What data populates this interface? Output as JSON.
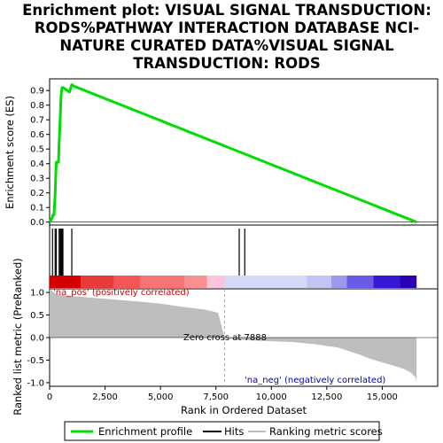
{
  "title": {
    "lines": [
      "Enrichment plot: VISUAL SIGNAL TRANSDUCTION:",
      "RODS%PATHWAY INTERACTION DATABASE NCI-",
      "NATURE CURATED DATA%VISUAL SIGNAL",
      "TRANSDUCTION: RODS"
    ]
  },
  "legend": {
    "enrichment_label": "Enrichment profile",
    "hits_label": "Hits",
    "metric_label": "Ranking metric scores"
  },
  "colors": {
    "enrichment": "#00dd00",
    "hits": "#000000",
    "metric_fill": "#bebebe",
    "pos_text": "#cc0000",
    "neg_text": "#0000bb",
    "zero_line": "#aaaaaa"
  },
  "annotations": {
    "pos": "'na_pos' (positively correlated)",
    "neg": "'na_neg' (negatively correlated)",
    "zero_cross": "Zero cross at 7888"
  },
  "chart_data": {
    "type": "line",
    "xlabel": "Rank in Ordered Dataset",
    "xlim": [
      0,
      17500
    ],
    "x_ticks": [
      0,
      2500,
      5000,
      7500,
      10000,
      12500,
      15000
    ],
    "x_tick_labels": [
      "0",
      "2,500",
      "5,000",
      "7,500",
      "10,000",
      "12,500",
      "15,000"
    ],
    "enrichment": {
      "ylabel": "Enrichment score (ES)",
      "ylim": [
        -0.02,
        0.98
      ],
      "y_ticks": [
        0.0,
        0.1,
        0.2,
        0.3,
        0.4,
        0.5,
        0.6,
        0.7,
        0.8,
        0.9
      ],
      "y_tick_labels": [
        "0.0",
        "0.1",
        "0.2",
        "0.3",
        "0.4",
        "0.5",
        "0.6",
        "0.7",
        "0.8",
        "0.9"
      ],
      "x": [
        0,
        120,
        150,
        200,
        250,
        280,
        300,
        320,
        350,
        400,
        430,
        460,
        480,
        500,
        520,
        560,
        620,
        700,
        800,
        900,
        1000,
        1100,
        16550
      ],
      "y": [
        0.0,
        0.03,
        0.05,
        0.05,
        0.2,
        0.33,
        0.41,
        0.41,
        0.41,
        0.41,
        0.55,
        0.64,
        0.72,
        0.8,
        0.87,
        0.92,
        0.92,
        0.91,
        0.9,
        0.89,
        0.94,
        0.93,
        0.0
      ]
    },
    "hits": {
      "positions": [
        130,
        250,
        300,
        430,
        480,
        520,
        560,
        600,
        1000,
        8550,
        8800
      ]
    },
    "ranked_metric": {
      "ylabel": "Ranked list metric (PreRanked)",
      "ylim": [
        -1.08,
        1.08
      ],
      "y_ticks": [
        -1.0,
        -0.5,
        0.0,
        0.5,
        1.0
      ],
      "y_tick_labels": [
        "-1.0",
        "-0.5",
        "0.0",
        "0.5",
        "1.0"
      ],
      "x": [
        0,
        300,
        1000,
        2000,
        3000,
        4000,
        5000,
        6000,
        7000,
        7600,
        7888,
        8500,
        10000,
        11000,
        12000,
        13000,
        14000,
        14500,
        15000,
        15500,
        16000,
        16300,
        16500,
        16550
      ],
      "y": [
        1.08,
        0.96,
        0.92,
        0.88,
        0.84,
        0.8,
        0.75,
        0.68,
        0.62,
        0.55,
        0.0,
        -0.05,
        -0.08,
        -0.1,
        -0.15,
        -0.22,
        -0.38,
        -0.48,
        -0.55,
        -0.62,
        -0.7,
        -0.78,
        -0.88,
        -1.0
      ],
      "zero_cross": 7888
    },
    "rank_colorbar": {
      "segments": [
        {
          "from": 0,
          "to": 1400,
          "color": "#d40000"
        },
        {
          "from": 1400,
          "to": 2900,
          "color": "#e83a3a"
        },
        {
          "from": 2900,
          "to": 4100,
          "color": "#f45656"
        },
        {
          "from": 4100,
          "to": 6100,
          "color": "#f77474"
        },
        {
          "from": 6100,
          "to": 7100,
          "color": "#f99090"
        },
        {
          "from": 7100,
          "to": 7888,
          "color": "#fcc4d8"
        },
        {
          "from": 7888,
          "to": 11600,
          "color": "#d7d7f7"
        },
        {
          "from": 11600,
          "to": 12700,
          "color": "#c4c4f4"
        },
        {
          "from": 12700,
          "to": 13400,
          "color": "#9a9aee"
        },
        {
          "from": 13400,
          "to": 14600,
          "color": "#6a5ae6"
        },
        {
          "from": 14600,
          "to": 15800,
          "color": "#3318d4"
        },
        {
          "from": 15800,
          "to": 16550,
          "color": "#2a00b0"
        }
      ]
    }
  }
}
